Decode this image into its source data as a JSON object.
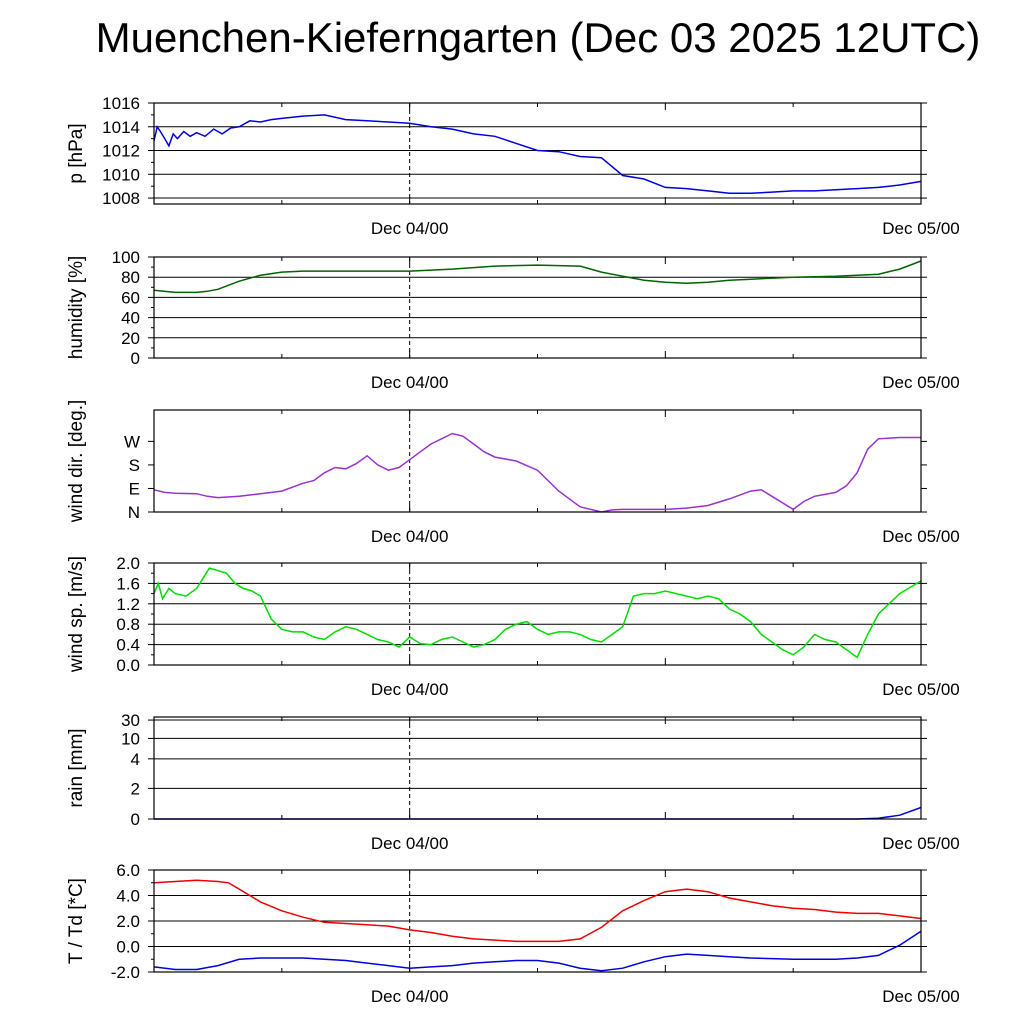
{
  "title": "Muenchen-Kieferngarten (Dec 03 2025 12UTC)",
  "chart_data": [
    {
      "type": "line",
      "ylabel": "p [hPa]",
      "ylim": [
        1007.5,
        1016
      ],
      "yticks": [
        1008,
        1010,
        1012,
        1014,
        1016
      ],
      "ytick_labels": [
        "1008",
        "1010",
        "1012",
        "1014",
        "1016"
      ],
      "xlim": [
        0,
        36
      ],
      "xtick_hours": [
        12,
        36
      ],
      "xtick_labels": [
        "Dec 04/00",
        "Dec 05/00"
      ],
      "series": [
        {
          "color": "#0000dd",
          "x": [
            0,
            0.15,
            0.3,
            0.5,
            0.7,
            0.9,
            1.1,
            1.4,
            1.7,
            2,
            2.4,
            2.8,
            3.2,
            3.6,
            4,
            4.5,
            5,
            5.5,
            6,
            7,
            8,
            9,
            10,
            11,
            12,
            13,
            14,
            15,
            16,
            17,
            18,
            19,
            20,
            21,
            22,
            23,
            24,
            25,
            26,
            27,
            28,
            29,
            30,
            31,
            32,
            33,
            34,
            35,
            36
          ],
          "values": [
            1012.8,
            1014.0,
            1013.6,
            1013.0,
            1012.4,
            1013.4,
            1013.0,
            1013.6,
            1013.2,
            1013.5,
            1013.2,
            1013.8,
            1013.4,
            1013.9,
            1014.0,
            1014.5,
            1014.4,
            1014.6,
            1014.7,
            1014.9,
            1015.0,
            1014.6,
            1014.5,
            1014.4,
            1014.3,
            1014.0,
            1013.8,
            1013.4,
            1013.2,
            1012.6,
            1012.0,
            1011.9,
            1011.5,
            1011.4,
            1009.9,
            1009.6,
            1008.9,
            1008.8,
            1008.6,
            1008.4,
            1008.4,
            1008.5,
            1008.6,
            1008.6,
            1008.7,
            1008.8,
            1008.9,
            1009.1,
            1009.4
          ]
        }
      ]
    },
    {
      "type": "line",
      "ylabel": "humidity [%]",
      "ylim": [
        0,
        100
      ],
      "yticks": [
        0,
        20,
        40,
        60,
        80,
        100
      ],
      "ytick_labels": [
        "0",
        "20",
        "40",
        "60",
        "80",
        "100"
      ],
      "xlim": [
        0,
        36
      ],
      "xtick_hours": [
        12,
        36
      ],
      "xtick_labels": [
        "Dec 04/00",
        "Dec 05/00"
      ],
      "series": [
        {
          "color": "#006400",
          "x": [
            0,
            1,
            2,
            2.5,
            3,
            4,
            5,
            6,
            7,
            8,
            9,
            10,
            11,
            12,
            14,
            16,
            18,
            20,
            21,
            22,
            23,
            24,
            25,
            26,
            27,
            28,
            30,
            32,
            34,
            35,
            36
          ],
          "values": [
            67,
            65,
            65,
            66,
            68,
            76,
            82,
            85,
            86,
            86,
            86,
            86,
            86,
            86,
            88,
            91,
            92,
            91,
            85,
            81,
            77,
            75,
            74,
            75,
            77,
            78,
            80,
            81,
            83,
            88,
            96
          ]
        }
      ]
    },
    {
      "type": "line",
      "ylabel": "wind dir. [deg.]",
      "ylim": [
        0,
        390
      ],
      "yticks": [
        0,
        90,
        180,
        270
      ],
      "ytick_labels": [
        "N",
        "E",
        "S",
        "W"
      ],
      "xlim": [
        0,
        36
      ],
      "xtick_hours": [
        12,
        36
      ],
      "xtick_labels": [
        "Dec 04/00",
        "Dec 05/00"
      ],
      "series": [
        {
          "color": "#9932cc",
          "x": [
            0,
            0.5,
            1,
            2,
            2.5,
            3,
            4,
            5,
            6,
            7,
            7.5,
            8,
            8.5,
            9,
            9.5,
            10,
            10.5,
            11,
            11.5,
            12,
            12.5,
            13,
            13.5,
            14,
            14.5,
            15,
            15.5,
            16,
            17,
            18,
            19,
            20,
            21,
            21.5,
            22,
            23,
            24,
            25,
            26,
            27,
            28,
            28.5,
            29,
            30,
            30.5,
            31,
            32,
            32.5,
            33,
            33.5,
            34,
            35,
            36
          ],
          "values": [
            85,
            75,
            72,
            70,
            60,
            55,
            60,
            70,
            80,
            110,
            120,
            150,
            170,
            165,
            185,
            215,
            180,
            160,
            170,
            200,
            230,
            260,
            280,
            300,
            290,
            260,
            230,
            210,
            195,
            160,
            80,
            20,
            0,
            8,
            10,
            10,
            10,
            15,
            25,
            50,
            80,
            85,
            60,
            10,
            40,
            60,
            75,
            100,
            150,
            240,
            280,
            285,
            285
          ]
        }
      ]
    },
    {
      "type": "line",
      "ylabel": "wind sp. [m/s]",
      "ylim": [
        0,
        2
      ],
      "yticks": [
        0,
        0.4,
        0.8,
        1.2,
        1.6,
        2.0
      ],
      "ytick_labels": [
        "0.0",
        "0.4",
        "0.8",
        "1.2",
        "1.6",
        "2.0"
      ],
      "xlim": [
        0,
        36
      ],
      "xtick_hours": [
        12,
        36
      ],
      "xtick_labels": [
        "Dec 04/00",
        "Dec 05/00"
      ],
      "series": [
        {
          "color": "#00dd00",
          "x": [
            0,
            0.2,
            0.4,
            0.7,
            1,
            1.5,
            2,
            2.3,
            2.6,
            3,
            3.4,
            3.8,
            4.2,
            4.6,
            5,
            5.5,
            6,
            6.5,
            7,
            7.5,
            8,
            8.5,
            9,
            9.5,
            10,
            10.5,
            11,
            11.5,
            12,
            12.5,
            13,
            13.5,
            14,
            14.5,
            15,
            15.5,
            16,
            16.5,
            17,
            17.5,
            18,
            18.5,
            19,
            19.5,
            20,
            20.5,
            21,
            21.5,
            22,
            22.5,
            23,
            23.5,
            24,
            25,
            25.5,
            26,
            26.5,
            27,
            27.5,
            28,
            28.5,
            29,
            29.5,
            30,
            30.5,
            31,
            31.5,
            32,
            32.5,
            33,
            33.5,
            34,
            35,
            36
          ],
          "values": [
            1.4,
            1.6,
            1.3,
            1.5,
            1.4,
            1.35,
            1.5,
            1.7,
            1.9,
            1.85,
            1.8,
            1.6,
            1.5,
            1.45,
            1.35,
            0.9,
            0.7,
            0.65,
            0.65,
            0.55,
            0.5,
            0.65,
            0.75,
            0.7,
            0.6,
            0.5,
            0.45,
            0.35,
            0.55,
            0.42,
            0.4,
            0.5,
            0.55,
            0.45,
            0.35,
            0.4,
            0.5,
            0.7,
            0.8,
            0.85,
            0.7,
            0.6,
            0.65,
            0.65,
            0.6,
            0.5,
            0.45,
            0.6,
            0.75,
            1.35,
            1.4,
            1.4,
            1.45,
            1.35,
            1.3,
            1.35,
            1.3,
            1.1,
            1.0,
            0.85,
            0.6,
            0.45,
            0.3,
            0.2,
            0.35,
            0.6,
            0.5,
            0.45,
            0.3,
            0.15,
            0.6,
            1.0,
            1.4,
            1.65
          ]
        }
      ]
    },
    {
      "type": "line",
      "ylabel": "rain [mm]",
      "ylim": [
        0,
        30
      ],
      "yticks": [
        0,
        2,
        4,
        10,
        30
      ],
      "ytick_labels": [
        "0",
        "2",
        "4",
        "10",
        "30"
      ],
      "xlim": [
        0,
        36
      ],
      "xtick_hours": [
        12,
        36
      ],
      "xtick_labels": [
        "Dec 04/00",
        "Dec 05/00"
      ],
      "series": [
        {
          "color": "#0000dd",
          "x": [
            0,
            33,
            34,
            35,
            36
          ],
          "values": [
            0,
            0,
            0.05,
            0.25,
            0.75
          ]
        }
      ]
    },
    {
      "type": "line",
      "ylabel": "T / Td [*C]",
      "ylim": [
        -2,
        6
      ],
      "yticks": [
        -2,
        0,
        2,
        4,
        6
      ],
      "ytick_labels": [
        "-2.0",
        "0.0",
        "2.0",
        "4.0",
        "6.0"
      ],
      "xlim": [
        0,
        36
      ],
      "xtick_hours": [
        12,
        36
      ],
      "xtick_labels": [
        "Dec 04/00",
        "Dec 05/00"
      ],
      "series": [
        {
          "color": "#ee0000",
          "x": [
            0,
            1,
            2,
            3,
            3.5,
            4,
            5,
            6,
            7,
            8,
            9,
            10,
            11,
            12,
            13,
            14,
            15,
            16,
            17,
            18,
            19,
            20,
            21,
            22,
            23,
            24,
            25,
            26,
            27,
            28,
            29,
            30,
            31,
            32,
            33,
            34,
            35,
            36
          ],
          "values": [
            5.0,
            5.1,
            5.2,
            5.1,
            5.0,
            4.5,
            3.5,
            2.8,
            2.3,
            1.9,
            1.8,
            1.7,
            1.6,
            1.3,
            1.1,
            0.8,
            0.6,
            0.5,
            0.4,
            0.4,
            0.4,
            0.6,
            1.5,
            2.8,
            3.6,
            4.3,
            4.5,
            4.3,
            3.8,
            3.5,
            3.2,
            3.0,
            2.9,
            2.7,
            2.6,
            2.6,
            2.4,
            2.2
          ]
        },
        {
          "color": "#0000dd",
          "x": [
            0,
            1,
            2,
            3,
            4,
            5,
            6,
            7,
            8,
            9,
            10,
            11,
            12,
            13,
            14,
            15,
            16,
            17,
            18,
            19,
            20,
            21,
            22,
            23,
            24,
            25,
            26,
            27,
            28,
            29,
            30,
            31,
            32,
            33,
            34,
            35,
            36
          ],
          "values": [
            -1.6,
            -1.8,
            -1.8,
            -1.5,
            -1.0,
            -0.9,
            -0.9,
            -0.9,
            -1.0,
            -1.1,
            -1.3,
            -1.5,
            -1.7,
            -1.6,
            -1.5,
            -1.3,
            -1.2,
            -1.1,
            -1.1,
            -1.3,
            -1.7,
            -1.9,
            -1.7,
            -1.2,
            -0.8,
            -0.6,
            -0.7,
            -0.8,
            -0.9,
            -0.95,
            -1.0,
            -1.0,
            -1.0,
            -0.9,
            -0.7,
            0.1,
            1.2
          ]
        }
      ]
    }
  ]
}
